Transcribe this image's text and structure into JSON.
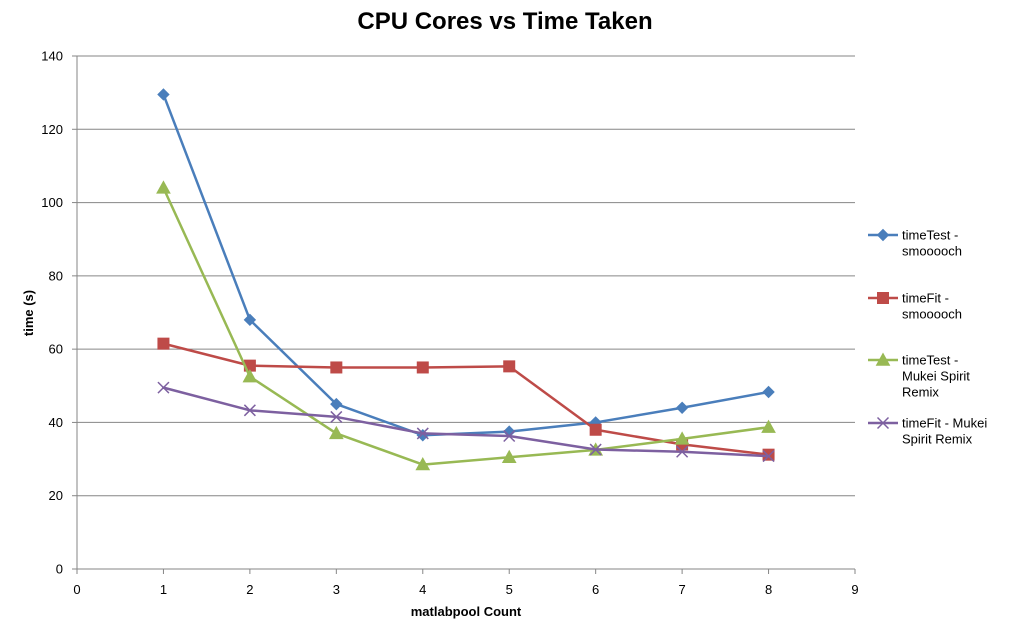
{
  "chart_data": {
    "type": "line",
    "title": "CPU Cores vs Time Taken",
    "xlabel": "matlabpool  Count",
    "ylabel": "time (s)",
    "xlim": [
      0,
      9
    ],
    "ylim": [
      0,
      140
    ],
    "x_ticks": [
      "0",
      "1",
      "2",
      "3",
      "4",
      "5",
      "6",
      "7",
      "8",
      "9"
    ],
    "y_ticks": [
      "0",
      "20",
      "40",
      "60",
      "80",
      "100",
      "120",
      "140"
    ],
    "grid": "horizontal",
    "legend_position": "right",
    "x": [
      1,
      2,
      3,
      4,
      5,
      6,
      7,
      8
    ],
    "series": [
      {
        "name": "timeTest - smooooch",
        "legend_lines": [
          "timeTest -",
          "smooooch"
        ],
        "color": "#4a7ebb",
        "marker": "diamond",
        "values": [
          129.5,
          68,
          45,
          36.5,
          37.5,
          40,
          44,
          48.3
        ]
      },
      {
        "name": "timeFit - smooooch",
        "legend_lines": [
          "timeFit -",
          "smooooch"
        ],
        "color": "#be4b48",
        "marker": "square",
        "values": [
          61.5,
          55.5,
          55,
          55,
          55.3,
          38,
          34,
          31.2
        ]
      },
      {
        "name": "timeTest - Mukei Spirit Remix",
        "legend_lines": [
          "timeTest -",
          "Mukei Spirit",
          "Remix"
        ],
        "color": "#98b954",
        "marker": "triangle",
        "values": [
          104,
          52.5,
          37,
          28.5,
          30.5,
          32.5,
          35.5,
          38.7
        ]
      },
      {
        "name": "timeFit - Mukei Spirit Remix",
        "legend_lines": [
          "timeFit - Mukei",
          "Spirit Remix"
        ],
        "color": "#7d60a0",
        "marker": "x",
        "values": [
          49.5,
          43.3,
          41.5,
          37,
          36.3,
          32.6,
          32,
          30.8
        ]
      }
    ]
  }
}
